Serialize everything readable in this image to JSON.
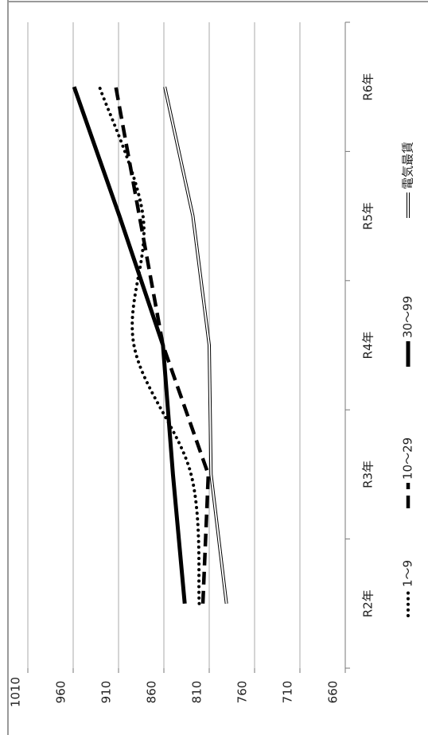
{
  "chart_data": {
    "type": "line",
    "categories": [
      "R2年",
      "R3年",
      "R4年",
      "R5年",
      "R6年"
    ],
    "series": [
      {
        "name": "1～9",
        "color": "#000000",
        "style": "dotted",
        "smooth": true,
        "values": [
          821,
          830,
          893,
          883,
          931
        ]
      },
      {
        "name": "10～29",
        "color": "#000000",
        "style": "dashed",
        "values": [
          817,
          811,
          861,
          887,
          913
        ]
      },
      {
        "name": "30～99",
        "color": "#000000",
        "style": "solid",
        "values": [
          837,
          850,
          861,
          909,
          959
        ]
      },
      {
        "name": "電気最賃",
        "color": "#ffffff",
        "style": "outlined",
        "values": [
          791,
          808,
          810,
          828,
          859
        ]
      }
    ],
    "ylim": [
      660,
      1010
    ],
    "yticks": [
      660,
      710,
      760,
      810,
      860,
      910,
      960,
      1010
    ],
    "grid": true,
    "legend": "bottom",
    "rotated": true
  }
}
